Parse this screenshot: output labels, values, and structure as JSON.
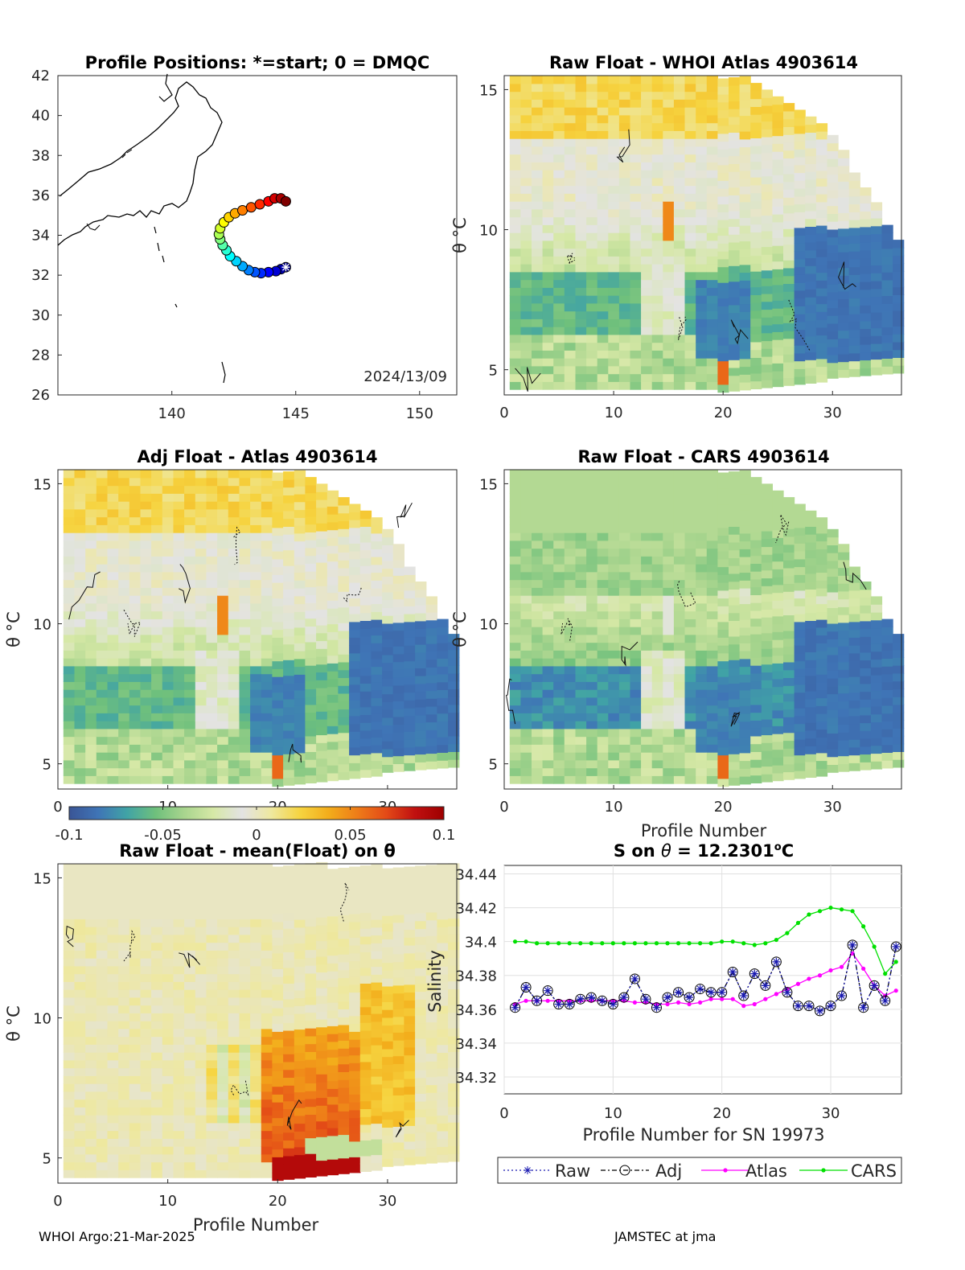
{
  "footer": {
    "left": "WHOI Argo:21-Mar-2025",
    "right": "JAMSTEC at jma"
  },
  "map": {
    "title": "Profile Positions: *=start; 0 = DMQC",
    "date_label": "2024/13/09",
    "x_ticks": [
      "140",
      "145",
      "150"
    ],
    "y_ticks": [
      "26",
      "28",
      "30",
      "32",
      "34",
      "36",
      "38",
      "40",
      "42"
    ],
    "xlim": [
      135.4,
      151.5
    ],
    "ylim": [
      26,
      42
    ]
  },
  "section_axes": {
    "y_label": "θ °C",
    "y_ticks": [
      "5",
      "10",
      "15"
    ],
    "x_ticks": [
      "0",
      "10",
      "20",
      "30"
    ],
    "xlim": [
      0,
      36.3
    ],
    "ylim": [
      4.1,
      15.5
    ]
  },
  "panels": {
    "p1": {
      "title": "Raw Float - WHOI Atlas  4903614",
      "xlabel": ""
    },
    "p2": {
      "title": "Adj Float - Atlas  4903614",
      "xlabel": ""
    },
    "p3": {
      "title": "Raw Float - CARS  4903614",
      "xlabel": "Profile Number"
    },
    "p4": {
      "title": "Raw Float - mean(Float) on θ",
      "xlabel": "Profile Number"
    }
  },
  "colorbar": {
    "ticks": [
      "-0.1",
      "-0.05",
      "0",
      "0.05",
      "0.1"
    ],
    "range": [
      -0.1,
      0.1
    ],
    "colors": [
      "#3a5596",
      "#3f74b6",
      "#40a3a6",
      "#6fc07c",
      "#a9d58e",
      "#d6e8a6",
      "#e3e3e3",
      "#eee8a0",
      "#f6d440",
      "#f3ad1b",
      "#ee7c18",
      "#e34a17",
      "#c01010",
      "#9e0000"
    ]
  },
  "chart_data": [
    {
      "type": "scatter",
      "title": "Profile Positions: *=start; 0 = DMQC",
      "xlim": [
        135.4,
        151.5
      ],
      "ylim": [
        26,
        42
      ],
      "trajectory": {
        "lon": [
          144.6,
          144.4,
          144.2,
          143.9,
          143.6,
          143.35,
          143.1,
          142.85,
          142.6,
          142.35,
          142.2,
          142.05,
          141.95,
          141.9,
          141.95,
          142.1,
          142.3,
          142.55,
          142.85,
          143.2,
          143.55,
          143.9,
          144.15,
          144.4,
          144.6
        ],
        "lat": [
          32.4,
          32.3,
          32.2,
          32.15,
          32.1,
          32.15,
          32.25,
          32.45,
          32.7,
          32.95,
          33.25,
          33.5,
          33.8,
          34.05,
          34.35,
          34.65,
          34.9,
          35.1,
          35.25,
          35.4,
          35.55,
          35.7,
          35.85,
          35.85,
          35.7
        ]
      }
    },
    {
      "type": "line",
      "title": "S on θ = 12.2301°C",
      "xlabel": "Profile Number for SN 19973",
      "ylabel": "Salinity",
      "xlim": [
        0,
        36.5
      ],
      "ylim": [
        34.31,
        34.445
      ],
      "x_ticks": [
        "0",
        "10",
        "20",
        "30"
      ],
      "y_ticks": [
        "34.32",
        "34.34",
        "34.36",
        "34.38",
        "34.4",
        "34.42",
        "34.44"
      ],
      "x": [
        1,
        2,
        3,
        4,
        5,
        6,
        7,
        8,
        9,
        10,
        11,
        12,
        13,
        14,
        15,
        16,
        17,
        18,
        19,
        20,
        21,
        22,
        23,
        24,
        25,
        26,
        27,
        28,
        29,
        30,
        31,
        32,
        33,
        34,
        35,
        36
      ],
      "series": [
        {
          "name": "Raw",
          "color": "#1a1ab0",
          "values": [
            34.361,
            34.373,
            34.365,
            34.371,
            34.363,
            34.363,
            34.366,
            34.367,
            34.365,
            34.363,
            34.367,
            34.378,
            34.366,
            34.361,
            34.367,
            34.37,
            34.367,
            34.372,
            34.37,
            34.37,
            34.382,
            34.368,
            34.381,
            34.374,
            34.388,
            34.37,
            34.362,
            34.362,
            34.359,
            34.362,
            34.368,
            34.398,
            34.361,
            34.374,
            34.365,
            34.397
          ]
        },
        {
          "name": "Adj",
          "color": "#000000",
          "values": [
            34.361,
            34.373,
            34.365,
            34.371,
            34.363,
            34.363,
            34.366,
            34.367,
            34.365,
            34.363,
            34.367,
            34.378,
            34.366,
            34.361,
            34.367,
            34.37,
            34.367,
            34.372,
            34.37,
            34.37,
            34.382,
            34.368,
            34.381,
            34.374,
            34.388,
            34.37,
            34.362,
            34.362,
            34.359,
            34.362,
            34.368,
            34.398,
            34.361,
            34.374,
            34.365,
            34.397
          ]
        },
        {
          "name": "Atlas",
          "color": "#ff00ff",
          "values": [
            34.363,
            34.365,
            34.365,
            34.365,
            34.365,
            34.365,
            34.365,
            34.365,
            34.365,
            34.365,
            34.365,
            34.364,
            34.364,
            34.363,
            34.363,
            34.364,
            34.363,
            34.364,
            34.366,
            34.366,
            34.366,
            34.362,
            34.363,
            34.366,
            34.369,
            34.372,
            34.375,
            34.378,
            34.38,
            34.383,
            34.385,
            34.393,
            34.384,
            34.374,
            34.368,
            34.371
          ]
        },
        {
          "name": "CARS",
          "color": "#00e000",
          "values": [
            34.4,
            34.4,
            34.399,
            34.399,
            34.399,
            34.399,
            34.399,
            34.399,
            34.399,
            34.399,
            34.399,
            34.399,
            34.399,
            34.399,
            34.399,
            34.399,
            34.399,
            34.399,
            34.399,
            34.4,
            34.4,
            34.399,
            34.398,
            34.399,
            34.401,
            34.405,
            34.411,
            34.416,
            34.418,
            34.42,
            34.419,
            34.418,
            34.409,
            34.397,
            34.381,
            34.388
          ]
        }
      ]
    }
  ],
  "legend": [
    "Raw",
    "Adj",
    "Atlas",
    "CARS"
  ]
}
